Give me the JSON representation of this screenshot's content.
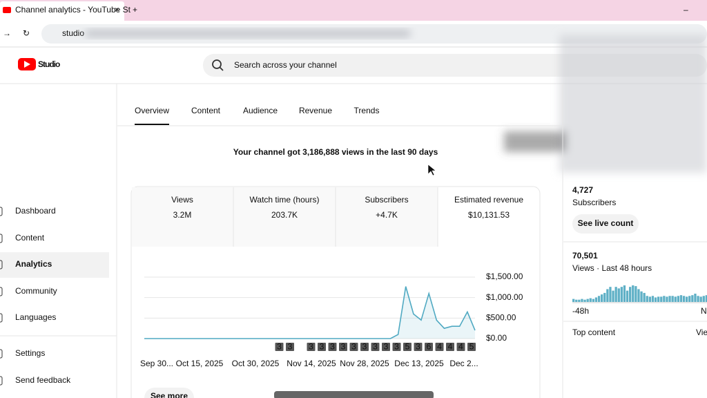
{
  "browser": {
    "tab_title": "Channel analytics - YouTube St",
    "url": "studio"
  },
  "header": {
    "logo": "Studio",
    "search_placeholder": "Search across your channel"
  },
  "sidebar": {
    "items": [
      "Dashboard",
      "Content",
      "Analytics",
      "Community",
      "Languages",
      "Settings",
      "Send feedback"
    ],
    "selected_index": 2
  },
  "tabs": {
    "items": [
      "Overview",
      "Content",
      "Audience",
      "Revenue",
      "Trends"
    ],
    "selected_index": 0
  },
  "headline": "Your channel got 3,186,888 views in the last 90 days",
  "metrics": [
    {
      "label": "Views",
      "value": "3.2M"
    },
    {
      "label": "Watch time (hours)",
      "value": "203.7K"
    },
    {
      "label": "Subscribers",
      "value": "+4.7K"
    },
    {
      "label": "Estimated revenue",
      "value": "$10,131.53"
    }
  ],
  "revenue_chart": {
    "type": "line",
    "color": "#4fa9c2",
    "values": [
      0,
      0,
      0,
      0,
      0,
      0,
      0,
      0,
      0,
      0,
      0,
      0,
      0,
      0,
      0,
      0,
      0,
      0,
      0,
      0,
      0,
      0,
      0,
      0,
      0,
      0,
      0,
      0,
      0,
      0,
      0,
      0,
      0,
      100,
      1270,
      600,
      450,
      1100,
      450,
      250,
      300,
      300,
      650,
      200
    ],
    "ylim": [
      0,
      1500
    ],
    "yticks": [
      {
        "value": 1500,
        "label": "$1,500.00"
      },
      {
        "value": 1000,
        "label": "$1,000.00"
      },
      {
        "value": 500,
        "label": "$500.00"
      },
      {
        "value": 0,
        "label": "$0.00"
      }
    ],
    "grid": true,
    "x_labels": [
      "Sep 30...",
      "Oct 15, 2025",
      "Oct 30, 2025",
      "Nov 14, 2025",
      "Nov 28, 2025",
      "Dec 13, 2025",
      "Dec 2..."
    ],
    "publish_markers": [
      3,
      3,
      3,
      3,
      3,
      3,
      3,
      3,
      3,
      3,
      3,
      5,
      3,
      6,
      4,
      4,
      4,
      5
    ]
  },
  "see_more": "See more",
  "realtime": {
    "subscribers": "4,727",
    "subscribers_label": "Subscribers",
    "live_button": "See live count",
    "views": "70,501",
    "views_label": "Views · Last 48 hours",
    "hourly_views": [
      600,
      450,
      450,
      600,
      450,
      600,
      750,
      600,
      900,
      1200,
      1500,
      1800,
      2550,
      3000,
      2250,
      3000,
      2700,
      3000,
      3300,
      2250,
      3000,
      3300,
      3150,
      2550,
      2100,
      1800,
      1200,
      1050,
      1200,
      900,
      1050,
      1050,
      1200,
      1050,
      1200,
      1200,
      1050,
      1200,
      1350,
      1200,
      1050,
      1200,
      1350,
      1650,
      1200,
      1050,
      1200,
      1350
    ],
    "x_labels": [
      "-48h",
      "No"
    ],
    "footer": "Top content",
    "footer_link": "View"
  }
}
